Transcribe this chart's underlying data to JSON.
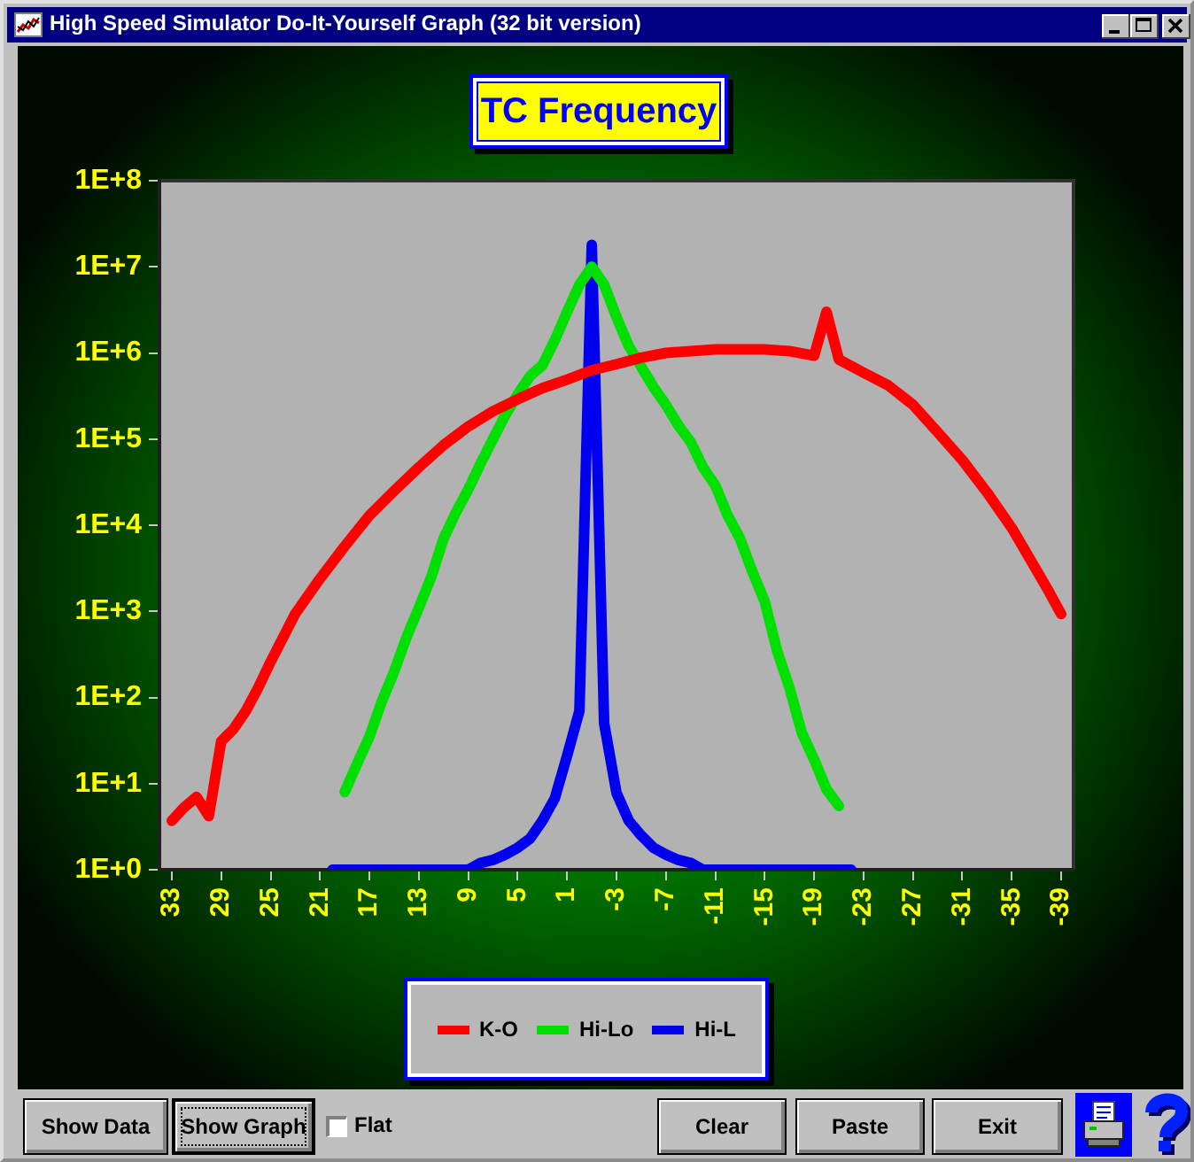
{
  "chart_data": {
    "type": "line",
    "title": "TC Frequency",
    "annotations": [
      "High Speed Simulator Do-It-Yourself Graph (32 bit version)",
      "Show Data",
      "Show Graph",
      "Flat",
      "Clear",
      "Paste",
      "Exit"
    ],
    "xlim": [
      34,
      -40
    ],
    "xticks": [
      33,
      29,
      25,
      21,
      17,
      13,
      9,
      5,
      1,
      -3,
      -7,
      -11,
      -15,
      -19,
      -23,
      -27,
      -31,
      -35,
      -39
    ],
    "ylim": [
      1,
      100000000
    ],
    "yticks": [
      {
        "value": 1,
        "label": "1E+0"
      },
      {
        "value": 10,
        "label": "1E+1"
      },
      {
        "value": 100,
        "label": "1E+2"
      },
      {
        "value": 1000,
        "label": "1E+3"
      },
      {
        "value": 10000,
        "label": "1E+4"
      },
      {
        "value": 100000,
        "label": "1E+5"
      },
      {
        "value": 1000000,
        "label": "1E+6"
      },
      {
        "value": 10000000,
        "label": "1E+7"
      },
      {
        "value": 100000000,
        "label": "1E+8"
      }
    ],
    "log": "y",
    "legend": "bottom",
    "series": [
      {
        "name": "K-O",
        "color": "#ff0000",
        "x": [
          33,
          32,
          31,
          30,
          29,
          28,
          27,
          26,
          25,
          23,
          21,
          19,
          17,
          15,
          13,
          11,
          9,
          7,
          5,
          3,
          1,
          -1,
          -3,
          -5,
          -7,
          -9,
          -11,
          -13,
          -15,
          -17,
          -19,
          -20,
          -21,
          -23,
          -25,
          -27,
          -29,
          -31,
          -33,
          -35,
          -37,
          -38,
          -39
        ],
        "values": [
          3.7,
          5.3,
          7,
          4.2,
          31,
          43,
          70,
          130,
          260,
          940,
          2400,
          5700,
          13000,
          25000,
          47000,
          85000,
          140000,
          210000,
          290000,
          390000,
          490000,
          630000,
          740000,
          880000,
          1000000,
          1050000,
          1100000,
          1100000,
          1100000,
          1050000,
          930000,
          3000000,
          840000,
          590000,
          420000,
          250000,
          120000,
          57000,
          24000,
          9300,
          3000,
          1700,
          930
        ]
      },
      {
        "name": "Hi-Lo",
        "color": "#00e000",
        "x": [
          19,
          18,
          17,
          16,
          15,
          14,
          13,
          12,
          11,
          10,
          9,
          8,
          7,
          6,
          5,
          4,
          3,
          2,
          1,
          0,
          -1,
          -2,
          -3,
          -4,
          -5,
          -6,
          -7,
          -8,
          -9,
          -10,
          -11,
          -12,
          -13,
          -14,
          -15,
          -16,
          -17,
          -18,
          -19,
          -20,
          -21
        ],
        "values": [
          8,
          17,
          35,
          90,
          200,
          500,
          1100,
          2500,
          7000,
          14000,
          26000,
          52000,
          100000,
          190000,
          330000,
          540000,
          720000,
          1400000,
          3000000,
          6200000,
          10000000,
          6200000,
          2600000,
          1200000,
          690000,
          400000,
          250000,
          145000,
          93000,
          47000,
          29000,
          13000,
          7000,
          2900,
          1300,
          350,
          130,
          39,
          19,
          8.6,
          5.5
        ]
      },
      {
        "name": "Hi-L",
        "color": "#0000ee",
        "x": [
          20,
          19,
          18,
          17,
          16,
          15,
          14,
          13,
          12,
          11,
          10,
          9,
          8,
          7,
          6,
          5,
          4,
          3,
          2,
          1,
          0,
          -1,
          -2,
          -3,
          -4,
          -5,
          -6,
          -7,
          -8,
          -9,
          -10,
          -11,
          -12,
          -13,
          -14,
          -15,
          -16,
          -17,
          -18,
          -19,
          -20,
          -21,
          -22
        ],
        "values": [
          1,
          1,
          1,
          1,
          1,
          1,
          1,
          1,
          1,
          1,
          1,
          1,
          1.2,
          1.3,
          1.5,
          1.8,
          2.3,
          3.7,
          6.7,
          21,
          70,
          18000000,
          50,
          7.8,
          3.7,
          2.5,
          1.8,
          1.5,
          1.3,
          1.2,
          1,
          1,
          1,
          1,
          1,
          1,
          1,
          1,
          1,
          1,
          1,
          1,
          1
        ]
      }
    ]
  }
}
